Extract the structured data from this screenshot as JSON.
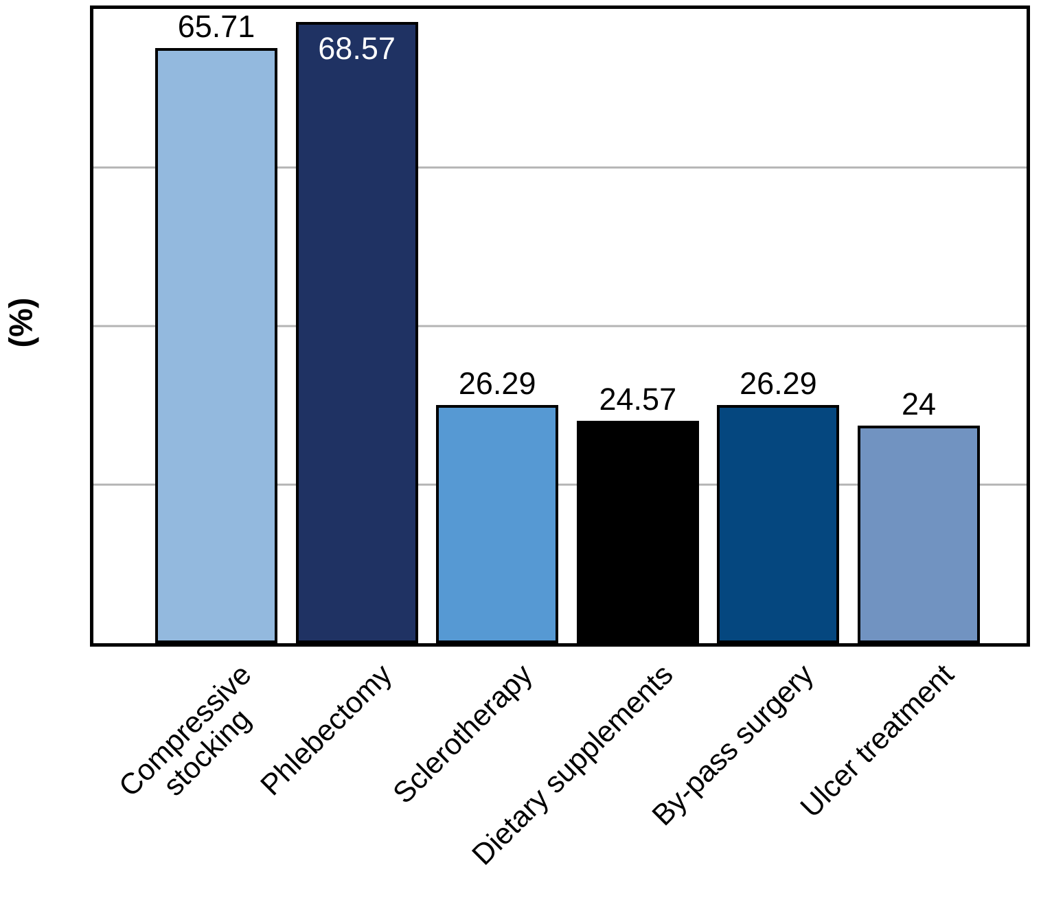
{
  "chart_data": {
    "type": "bar",
    "title": "",
    "xlabel": "",
    "ylabel": "(%)",
    "ylim": [
      0,
      70
    ],
    "gridlines_y": [
      17.5,
      35,
      52.5
    ],
    "grid": "horizontal",
    "legend": "none",
    "categories": [
      "Compressive\nstocking",
      "Phlebectomy",
      "Sclerotherapy",
      "Dietary supplements",
      "By-pass surgery",
      "Ulcer treatment"
    ],
    "values": [
      65.71,
      68.57,
      26.29,
      24.57,
      26.29,
      24
    ],
    "value_labels": [
      "65.71",
      "68.57",
      "26.29",
      "24.57",
      "26.29",
      "24"
    ],
    "bar_colors": [
      "#93B9DE",
      "#1F3263",
      "#5699D3",
      "#000000",
      "#05477F",
      "#7193C1"
    ],
    "value_label_placements": [
      "above",
      "inside",
      "above",
      "above",
      "above",
      "above"
    ],
    "value_label_colors": [
      "#000000",
      "#FFFFFF",
      "#000000",
      "#000000",
      "#000000",
      "#000000"
    ],
    "colors": {
      "bar_border": "#000000",
      "plot_border": "#000000",
      "gridline": "#B4B4B4",
      "background": "#FFFFFF"
    }
  }
}
